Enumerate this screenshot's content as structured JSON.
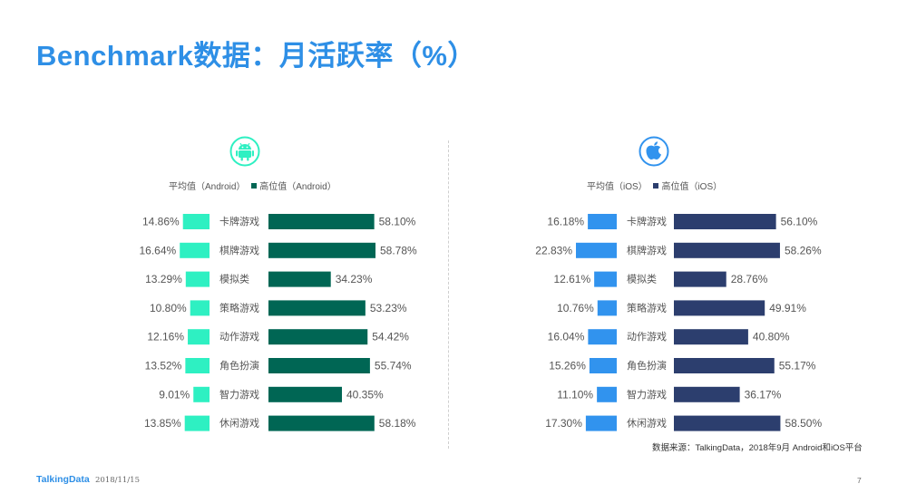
{
  "title": "Benchmark数据：月活跃率（%）",
  "icons": {
    "left": "android-icon",
    "right": "apple-icon"
  },
  "colors": {
    "android_avg": "#2ef0c2",
    "android_high": "#006654",
    "ios_avg": "#3193ee",
    "ios_high": "#2c3e6e"
  },
  "chart_data": [
    {
      "type": "bar",
      "platform": "Android",
      "categories": [
        "卡牌游戏",
        "棋牌游戏",
        "模拟类",
        "策略游戏",
        "动作游戏",
        "角色扮演",
        "智力游戏",
        "休闲游戏"
      ],
      "series": [
        {
          "name": "平均值（Android）",
          "values": [
            14.86,
            16.64,
            13.29,
            10.8,
            12.16,
            13.52,
            9.01,
            13.85
          ],
          "labels": [
            "14.86%",
            "16.64%",
            "13.29%",
            "10.80%",
            "12.16%",
            "13.52%",
            "9.01%",
            "13.85%"
          ]
        },
        {
          "name": "高位值（Android）",
          "values": [
            58.1,
            58.78,
            34.23,
            53.23,
            54.42,
            55.74,
            40.35,
            58.18
          ],
          "labels": [
            "58.10%",
            "58.78%",
            "34.23%",
            "53.23%",
            "54.42%",
            "55.74%",
            "40.35%",
            "58.18%"
          ]
        }
      ]
    },
    {
      "type": "bar",
      "platform": "iOS",
      "categories": [
        "卡牌游戏",
        "棋牌游戏",
        "模拟类",
        "策略游戏",
        "动作游戏",
        "角色扮演",
        "智力游戏",
        "休闲游戏"
      ],
      "series": [
        {
          "name": "平均值（iOS）",
          "values": [
            16.18,
            22.83,
            12.61,
            10.76,
            16.04,
            15.26,
            11.1,
            17.3
          ],
          "labels": [
            "16.18%",
            "22.83%",
            "12.61%",
            "10.76%",
            "16.04%",
            "15.26%",
            "11.10%",
            "17.30%"
          ]
        },
        {
          "name": "高位值（iOS）",
          "values": [
            56.1,
            58.26,
            28.76,
            49.91,
            40.8,
            55.17,
            36.17,
            58.5
          ],
          "labels": [
            "56.10%",
            "58.26%",
            "28.76%",
            "49.91%",
            "40.80%",
            "55.17%",
            "36.17%",
            "58.50%"
          ]
        }
      ]
    }
  ],
  "source": "数据来源：TalkingData，2018年9月 Android和iOS平台",
  "footer": {
    "logo": "TalkingData",
    "date": "2018/11/15",
    "page": "7"
  }
}
